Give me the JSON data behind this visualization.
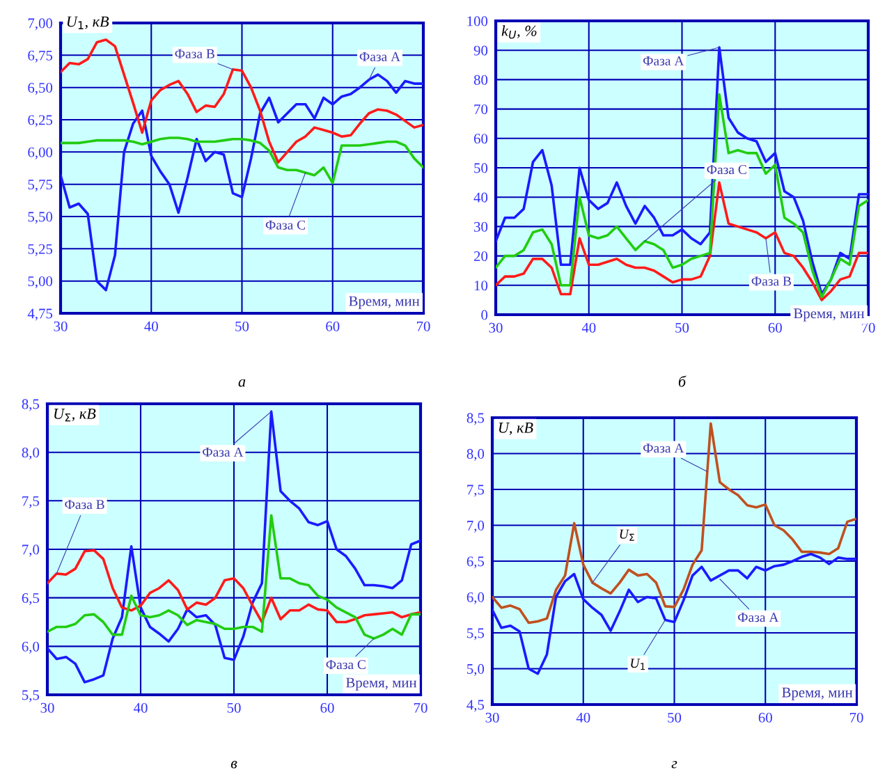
{
  "chart_data": [
    {
      "type": "line",
      "ylabel": "U$_{1}$, кВ",
      "xlabel": "Время, мин",
      "annotations": [
        "а"
      ],
      "grid": true,
      "line_style": "solid",
      "x": [
        30,
        31,
        32,
        33,
        34,
        35,
        36,
        37,
        38,
        39,
        40,
        41,
        42,
        43,
        44,
        45,
        46,
        47,
        48,
        49,
        50,
        51,
        52,
        53,
        54,
        55,
        56,
        57,
        58,
        59,
        60,
        61,
        62,
        63,
        64,
        65,
        66,
        67,
        68,
        69,
        70
      ],
      "xlim": [
        30,
        70
      ],
      "xticks": [
        30,
        40,
        50,
        60,
        70
      ],
      "ylim": [
        4.75,
        7.0
      ],
      "yticks": [
        {
          "value": 4.75,
          "label": "4,75"
        },
        {
          "value": 5.0,
          "label": "5,00"
        },
        {
          "value": 5.25,
          "label": "5,25"
        },
        {
          "value": 5.5,
          "label": "5,50"
        },
        {
          "value": 5.75,
          "label": "5,75"
        },
        {
          "value": 6.0,
          "label": "6,00"
        },
        {
          "value": 6.25,
          "label": "6,25"
        },
        {
          "value": 6.5,
          "label": "6,50"
        },
        {
          "value": 6.75,
          "label": "6,75"
        },
        {
          "value": 7.0,
          "label": "7,00"
        }
      ],
      "series": [
        {
          "name": "Фаза А",
          "color": "#1a1aff",
          "values": [
            5.82,
            5.57,
            5.6,
            5.52,
            5.0,
            4.93,
            5.2,
            6.0,
            6.22,
            6.32,
            5.97,
            5.85,
            5.75,
            5.53,
            5.8,
            6.1,
            5.93,
            6.0,
            5.98,
            5.68,
            5.65,
            5.95,
            6.3,
            6.42,
            6.23,
            6.3,
            6.37,
            6.37,
            6.26,
            6.42,
            6.37,
            6.43,
            6.45,
            6.5,
            6.56,
            6.6,
            6.55,
            6.46,
            6.55,
            6.53,
            6.53
          ]
        },
        {
          "name": "Фаза В",
          "color": "#ff1a1a",
          "values": [
            6.62,
            6.69,
            6.68,
            6.72,
            6.85,
            6.87,
            6.82,
            6.6,
            6.38,
            6.15,
            6.4,
            6.48,
            6.52,
            6.55,
            6.45,
            6.31,
            6.36,
            6.35,
            6.45,
            6.64,
            6.63,
            6.5,
            6.32,
            6.08,
            5.92,
            6.0,
            6.08,
            6.12,
            6.19,
            6.17,
            6.15,
            6.12,
            6.13,
            6.22,
            6.3,
            6.33,
            6.32,
            6.29,
            6.24,
            6.19,
            6.21
          ]
        },
        {
          "name": "Фаза С",
          "color": "#22cc11",
          "values": [
            6.07,
            6.07,
            6.07,
            6.08,
            6.09,
            6.09,
            6.09,
            6.09,
            6.08,
            6.06,
            6.08,
            6.1,
            6.11,
            6.11,
            6.1,
            6.08,
            6.08,
            6.08,
            6.09,
            6.1,
            6.1,
            6.09,
            6.07,
            6.01,
            5.88,
            5.86,
            5.86,
            5.84,
            5.82,
            5.88,
            5.76,
            6.05,
            6.05,
            6.05,
            6.06,
            6.07,
            6.08,
            6.08,
            6.05,
            5.95,
            5.88
          ]
        }
      ]
    },
    {
      "type": "line",
      "ylabel": "k$_{U}$, %",
      "xlabel": "Время, мин",
      "annotations": [
        "б"
      ],
      "grid": true,
      "line_style": "solid",
      "x": [
        30,
        31,
        32,
        33,
        34,
        35,
        36,
        37,
        38,
        39,
        40,
        41,
        42,
        43,
        44,
        45,
        46,
        47,
        48,
        49,
        50,
        51,
        52,
        53,
        54,
        55,
        56,
        57,
        58,
        59,
        60,
        61,
        62,
        63,
        64,
        65,
        66,
        67,
        68,
        69,
        70
      ],
      "xlim": [
        30,
        70
      ],
      "xticks": [
        30,
        40,
        50,
        60,
        70
      ],
      "ylim": [
        0,
        100
      ],
      "yticks": [
        0,
        10,
        20,
        30,
        40,
        50,
        60,
        70,
        80,
        90,
        100
      ],
      "series": [
        {
          "name": "Фаза А",
          "color": "#1a1aff",
          "values": [
            25,
            33,
            33,
            36,
            52,
            56,
            44,
            17,
            17,
            50,
            39,
            36,
            38,
            45,
            37,
            31,
            37,
            33,
            27,
            27,
            29,
            26,
            24,
            28,
            91,
            67,
            62,
            60,
            59,
            52,
            55,
            42,
            40,
            32,
            18,
            7,
            12,
            21,
            19,
            41,
            41
          ]
        },
        {
          "name": "Фаза В",
          "color": "#ff1a1a",
          "values": [
            10,
            13,
            13,
            14,
            19,
            19,
            16,
            7,
            7,
            26,
            17,
            17,
            18,
            19,
            17,
            16,
            16,
            15,
            13,
            11,
            12,
            12,
            13,
            20,
            45,
            31,
            30,
            29,
            28,
            26,
            28,
            21,
            20,
            16,
            11,
            5,
            8,
            12,
            13,
            21,
            21
          ]
        },
        {
          "name": "Фаза С",
          "color": "#22cc11",
          "values": [
            16,
            20,
            20,
            22,
            28,
            29,
            24,
            10,
            10,
            40,
            27,
            26,
            27,
            30,
            26,
            22,
            25,
            24,
            22,
            16,
            17,
            19,
            20,
            21,
            75,
            55,
            56,
            55,
            55,
            48,
            51,
            33,
            31,
            28,
            15,
            6,
            12,
            19,
            17,
            37,
            39
          ]
        }
      ]
    },
    {
      "type": "line",
      "ylabel": "U$_{Σ}$, кВ",
      "xlabel": "Время, мин",
      "annotations": [
        "в"
      ],
      "grid": true,
      "line_style": "solid",
      "x": [
        30,
        31,
        32,
        33,
        34,
        35,
        36,
        37,
        38,
        39,
        40,
        41,
        42,
        43,
        44,
        45,
        46,
        47,
        48,
        49,
        50,
        51,
        52,
        53,
        54,
        55,
        56,
        57,
        58,
        59,
        60,
        61,
        62,
        63,
        64,
        65,
        66,
        67,
        68,
        69,
        70
      ],
      "xlim": [
        30,
        70
      ],
      "xticks": [
        30,
        40,
        50,
        60,
        70
      ],
      "ylim": [
        5.5,
        8.5
      ],
      "yticks": [
        {
          "value": 5.5,
          "label": "5,5"
        },
        {
          "value": 6.0,
          "label": "6,0"
        },
        {
          "value": 6.5,
          "label": "6,5"
        },
        {
          "value": 7.0,
          "label": "7,0"
        },
        {
          "value": 7.5,
          "label": "7,5"
        },
        {
          "value": 8.0,
          "label": "8,0"
        },
        {
          "value": 8.5,
          "label": "8,5"
        }
      ],
      "series": [
        {
          "name": "Фаза А",
          "color": "#1a1aff",
          "values": [
            5.98,
            5.87,
            5.89,
            5.82,
            5.63,
            5.66,
            5.7,
            6.08,
            6.3,
            7.03,
            6.4,
            6.2,
            6.13,
            6.05,
            6.18,
            6.38,
            6.3,
            6.32,
            6.22,
            5.88,
            5.86,
            6.1,
            6.45,
            6.65,
            8.42,
            7.6,
            7.5,
            7.42,
            7.28,
            7.25,
            7.29,
            7.0,
            6.93,
            6.8,
            6.63,
            6.63,
            6.62,
            6.6,
            6.68,
            7.05,
            7.09
          ]
        },
        {
          "name": "Фаза В",
          "color": "#ff1a1a",
          "values": [
            6.65,
            6.75,
            6.74,
            6.8,
            6.98,
            6.99,
            6.9,
            6.6,
            6.4,
            6.37,
            6.42,
            6.55,
            6.6,
            6.68,
            6.58,
            6.38,
            6.45,
            6.43,
            6.5,
            6.68,
            6.7,
            6.6,
            6.42,
            6.25,
            6.5,
            6.28,
            6.37,
            6.37,
            6.43,
            6.38,
            6.37,
            6.25,
            6.25,
            6.28,
            6.32,
            6.33,
            6.34,
            6.35,
            6.3,
            6.33,
            6.35
          ]
        },
        {
          "name": "Фаза С",
          "color": "#22cc11",
          "values": [
            6.15,
            6.2,
            6.2,
            6.23,
            6.32,
            6.33,
            6.25,
            6.12,
            6.12,
            6.52,
            6.32,
            6.3,
            6.32,
            6.37,
            6.32,
            6.22,
            6.27,
            6.25,
            6.23,
            6.18,
            6.18,
            6.2,
            6.2,
            6.15,
            7.35,
            6.7,
            6.7,
            6.65,
            6.63,
            6.52,
            6.48,
            6.4,
            6.35,
            6.3,
            6.12,
            6.08,
            6.12,
            6.18,
            6.12,
            6.33,
            6.33
          ]
        }
      ]
    },
    {
      "type": "line",
      "ylabel": "U, кВ",
      "xlabel": "Время, мин",
      "grid": true,
      "line_style": "solid",
      "annotations": [
        "г",
        {
          "text": "Фаза А",
          "x": 53.6,
          "y": 7.75
        },
        {
          "text": "Фаза А",
          "x": 55,
          "y": 6.25
        }
      ],
      "x": [
        30,
        31,
        32,
        33,
        34,
        35,
        36,
        37,
        38,
        39,
        40,
        41,
        42,
        43,
        44,
        45,
        46,
        47,
        48,
        49,
        50,
        51,
        52,
        53,
        54,
        55,
        56,
        57,
        58,
        59,
        60,
        61,
        62,
        63,
        64,
        65,
        66,
        67,
        68,
        69,
        70
      ],
      "xlim": [
        30,
        70
      ],
      "xticks": [
        30,
        40,
        50,
        60,
        70
      ],
      "ylim": [
        4.5,
        8.5
      ],
      "yticks": [
        {
          "value": 4.5,
          "label": "4,5"
        },
        {
          "value": 5.0,
          "label": "5,0"
        },
        {
          "value": 5.5,
          "label": "5,5"
        },
        {
          "value": 6.0,
          "label": "6,0"
        },
        {
          "value": 6.5,
          "label": "6,5"
        },
        {
          "value": 7.0,
          "label": "7,0"
        },
        {
          "value": 7.5,
          "label": "7,5"
        },
        {
          "value": 8.0,
          "label": "8,0"
        },
        {
          "value": 8.5,
          "label": "8,5"
        }
      ],
      "series": [
        {
          "name": "U$_{Σ}$",
          "color": "#c0501f",
          "values": [
            6.0,
            5.85,
            5.88,
            5.83,
            5.64,
            5.66,
            5.7,
            6.1,
            6.3,
            7.03,
            6.45,
            6.2,
            6.12,
            6.05,
            6.2,
            6.38,
            6.3,
            6.32,
            6.2,
            5.87,
            5.86,
            6.1,
            6.45,
            6.65,
            8.42,
            7.6,
            7.5,
            7.42,
            7.28,
            7.25,
            7.29,
            7.0,
            6.93,
            6.8,
            6.63,
            6.63,
            6.62,
            6.6,
            6.68,
            7.05,
            7.09
          ]
        },
        {
          "name": "U$_{1}$",
          "color": "#1a1aff",
          "values": [
            5.82,
            5.57,
            5.6,
            5.52,
            5.0,
            4.93,
            5.2,
            6.0,
            6.22,
            6.32,
            5.97,
            5.85,
            5.75,
            5.53,
            5.8,
            6.1,
            5.93,
            6.0,
            5.98,
            5.68,
            5.65,
            5.95,
            6.3,
            6.42,
            6.23,
            6.3,
            6.37,
            6.37,
            6.26,
            6.42,
            6.37,
            6.43,
            6.45,
            6.5,
            6.56,
            6.6,
            6.55,
            6.46,
            6.55,
            6.53,
            6.53
          ]
        }
      ]
    }
  ]
}
